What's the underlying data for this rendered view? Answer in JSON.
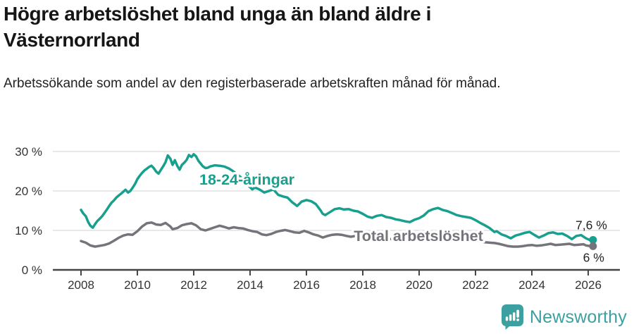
{
  "header": {
    "title": "Högre arbetslöshet bland unga än bland äldre i Västernorrland",
    "subtitle": "Arbetssökande som andel av den registerbaserade arbetskraften månad för månad."
  },
  "chart_data": {
    "type": "line",
    "title": "Högre arbetslöshet bland unga än bland äldre i Västernorrland",
    "subtitle": "Arbetssökande som andel av den registerbaserade arbetskraften månad för månad.",
    "x_unit": "year (monthly data)",
    "y_unit": "percent",
    "xlim": [
      2007.0,
      2027.1
    ],
    "ylim": [
      0,
      32
    ],
    "grid": "horizontal",
    "legend_position": "inline-on-line",
    "yticks": [
      {
        "value": 0,
        "label": "0 %"
      },
      {
        "value": 10,
        "label": "10 %"
      },
      {
        "value": 20,
        "label": "20 %"
      },
      {
        "value": 30,
        "label": "30 %"
      }
    ],
    "xticks": [
      2008,
      2010,
      2012,
      2014,
      2016,
      2018,
      2020,
      2022,
      2024,
      2026
    ],
    "colors": {
      "grid": "#d9d9d9",
      "axis": "#454545",
      "tick_text": "#333333"
    },
    "series": [
      {
        "id": "youth",
        "label": "18-24-åringar",
        "color": "#17a08e",
        "end_label": "7,6 %",
        "end_value": 7.6,
        "label_pos": {
          "year": 2012.2,
          "value": 21.6
        },
        "end_label_offset": [
          20,
          -15
        ],
        "points": [
          [
            2008.0,
            15.2
          ],
          [
            2008.08,
            14.3
          ],
          [
            2008.17,
            13.6
          ],
          [
            2008.25,
            12.2
          ],
          [
            2008.33,
            11.2
          ],
          [
            2008.42,
            10.7
          ],
          [
            2008.5,
            11.6
          ],
          [
            2008.58,
            12.4
          ],
          [
            2008.67,
            13.0
          ],
          [
            2008.75,
            13.6
          ],
          [
            2008.83,
            14.4
          ],
          [
            2008.92,
            15.3
          ],
          [
            2009.0,
            16.2
          ],
          [
            2009.08,
            17.0
          ],
          [
            2009.17,
            17.6
          ],
          [
            2009.25,
            18.3
          ],
          [
            2009.33,
            18.8
          ],
          [
            2009.42,
            19.3
          ],
          [
            2009.5,
            19.8
          ],
          [
            2009.58,
            20.3
          ],
          [
            2009.67,
            19.6
          ],
          [
            2009.75,
            20.0
          ],
          [
            2009.83,
            20.8
          ],
          [
            2009.92,
            21.8
          ],
          [
            2010.0,
            23.0
          ],
          [
            2010.08,
            23.8
          ],
          [
            2010.17,
            24.6
          ],
          [
            2010.25,
            25.2
          ],
          [
            2010.33,
            25.6
          ],
          [
            2010.42,
            26.1
          ],
          [
            2010.5,
            26.4
          ],
          [
            2010.58,
            25.8
          ],
          [
            2010.67,
            24.9
          ],
          [
            2010.75,
            24.4
          ],
          [
            2010.83,
            25.3
          ],
          [
            2010.92,
            26.3
          ],
          [
            2011.0,
            27.3
          ],
          [
            2011.08,
            29.0
          ],
          [
            2011.17,
            28.2
          ],
          [
            2011.25,
            26.6
          ],
          [
            2011.33,
            27.8
          ],
          [
            2011.42,
            26.3
          ],
          [
            2011.5,
            25.4
          ],
          [
            2011.58,
            26.6
          ],
          [
            2011.67,
            27.2
          ],
          [
            2011.75,
            27.9
          ],
          [
            2011.83,
            29.1
          ],
          [
            2011.92,
            28.6
          ],
          [
            2012.0,
            29.3
          ],
          [
            2012.08,
            28.8
          ],
          [
            2012.17,
            27.6
          ],
          [
            2012.25,
            26.9
          ],
          [
            2012.33,
            26.2
          ],
          [
            2012.42,
            25.8
          ],
          [
            2012.5,
            25.9
          ],
          [
            2012.58,
            26.2
          ],
          [
            2012.75,
            26.5
          ],
          [
            2012.92,
            26.4
          ],
          [
            2013.08,
            26.2
          ],
          [
            2013.25,
            25.7
          ],
          [
            2013.42,
            24.9
          ],
          [
            2013.58,
            24.0
          ],
          [
            2013.75,
            23.0
          ],
          [
            2013.92,
            21.5
          ],
          [
            2014.08,
            20.4
          ],
          [
            2014.17,
            20.9
          ],
          [
            2014.33,
            20.4
          ],
          [
            2014.5,
            19.6
          ],
          [
            2014.67,
            20.0
          ],
          [
            2014.83,
            20.4
          ],
          [
            2015.0,
            19.0
          ],
          [
            2015.17,
            18.6
          ],
          [
            2015.33,
            18.3
          ],
          [
            2015.5,
            17.1
          ],
          [
            2015.67,
            16.2
          ],
          [
            2015.83,
            17.3
          ],
          [
            2016.0,
            17.7
          ],
          [
            2016.17,
            17.4
          ],
          [
            2016.33,
            16.7
          ],
          [
            2016.5,
            15.1
          ],
          [
            2016.58,
            14.2
          ],
          [
            2016.67,
            13.9
          ],
          [
            2016.83,
            14.6
          ],
          [
            2017.0,
            15.4
          ],
          [
            2017.17,
            15.6
          ],
          [
            2017.33,
            15.3
          ],
          [
            2017.5,
            15.4
          ],
          [
            2017.67,
            15.0
          ],
          [
            2017.83,
            14.8
          ],
          [
            2018.0,
            14.2
          ],
          [
            2018.17,
            13.5
          ],
          [
            2018.33,
            13.2
          ],
          [
            2018.5,
            13.7
          ],
          [
            2018.67,
            13.9
          ],
          [
            2018.83,
            13.4
          ],
          [
            2019.0,
            13.2
          ],
          [
            2019.17,
            12.8
          ],
          [
            2019.33,
            12.6
          ],
          [
            2019.5,
            12.3
          ],
          [
            2019.67,
            12.1
          ],
          [
            2019.83,
            12.7
          ],
          [
            2020.0,
            13.1
          ],
          [
            2020.17,
            13.8
          ],
          [
            2020.33,
            14.9
          ],
          [
            2020.5,
            15.4
          ],
          [
            2020.67,
            15.7
          ],
          [
            2020.83,
            15.2
          ],
          [
            2021.0,
            14.9
          ],
          [
            2021.17,
            14.4
          ],
          [
            2021.33,
            13.9
          ],
          [
            2021.5,
            13.6
          ],
          [
            2021.67,
            13.4
          ],
          [
            2021.83,
            13.2
          ],
          [
            2022.0,
            12.6
          ],
          [
            2022.17,
            11.9
          ],
          [
            2022.33,
            11.3
          ],
          [
            2022.5,
            10.6
          ],
          [
            2022.67,
            9.6
          ],
          [
            2022.75,
            9.8
          ],
          [
            2022.92,
            9.0
          ],
          [
            2023.08,
            8.6
          ],
          [
            2023.25,
            8.0
          ],
          [
            2023.42,
            8.7
          ],
          [
            2023.58,
            9.0
          ],
          [
            2023.75,
            9.4
          ],
          [
            2023.92,
            9.6
          ],
          [
            2024.08,
            8.9
          ],
          [
            2024.25,
            8.2
          ],
          [
            2024.42,
            8.7
          ],
          [
            2024.58,
            9.3
          ],
          [
            2024.75,
            9.5
          ],
          [
            2024.92,
            9.1
          ],
          [
            2025.08,
            9.2
          ],
          [
            2025.25,
            8.6
          ],
          [
            2025.42,
            7.8
          ],
          [
            2025.58,
            8.6
          ],
          [
            2025.75,
            8.8
          ],
          [
            2025.92,
            8.0
          ],
          [
            2026.08,
            7.5
          ],
          [
            2026.17,
            7.6
          ]
        ]
      },
      {
        "id": "total",
        "label": "Total arbetslöshet",
        "color": "#75747a",
        "end_label": "6 %",
        "end_value": 6.0,
        "label_pos": {
          "year": 2017.68,
          "value": 7.3
        },
        "end_label_offset": [
          16,
          22
        ],
        "points": [
          [
            2008.0,
            7.3
          ],
          [
            2008.17,
            6.9
          ],
          [
            2008.33,
            6.2
          ],
          [
            2008.5,
            5.9
          ],
          [
            2008.67,
            6.1
          ],
          [
            2008.83,
            6.3
          ],
          [
            2009.0,
            6.7
          ],
          [
            2009.17,
            7.4
          ],
          [
            2009.33,
            8.1
          ],
          [
            2009.5,
            8.7
          ],
          [
            2009.67,
            9.0
          ],
          [
            2009.83,
            8.9
          ],
          [
            2010.0,
            9.8
          ],
          [
            2010.17,
            11.0
          ],
          [
            2010.33,
            11.8
          ],
          [
            2010.5,
            12.0
          ],
          [
            2010.67,
            11.5
          ],
          [
            2010.83,
            11.4
          ],
          [
            2011.0,
            11.9
          ],
          [
            2011.17,
            11.0
          ],
          [
            2011.25,
            10.3
          ],
          [
            2011.42,
            10.6
          ],
          [
            2011.58,
            11.3
          ],
          [
            2011.75,
            11.6
          ],
          [
            2011.92,
            11.8
          ],
          [
            2012.08,
            11.3
          ],
          [
            2012.25,
            10.3
          ],
          [
            2012.42,
            10.0
          ],
          [
            2012.58,
            10.4
          ],
          [
            2012.75,
            10.8
          ],
          [
            2012.92,
            11.2
          ],
          [
            2013.08,
            10.9
          ],
          [
            2013.25,
            10.5
          ],
          [
            2013.42,
            10.8
          ],
          [
            2013.58,
            10.6
          ],
          [
            2013.75,
            10.5
          ],
          [
            2013.92,
            10.1
          ],
          [
            2014.08,
            9.8
          ],
          [
            2014.25,
            9.6
          ],
          [
            2014.42,
            9.0
          ],
          [
            2014.58,
            8.8
          ],
          [
            2014.75,
            9.1
          ],
          [
            2014.92,
            9.6
          ],
          [
            2015.08,
            9.9
          ],
          [
            2015.25,
            10.1
          ],
          [
            2015.42,
            9.8
          ],
          [
            2015.58,
            9.5
          ],
          [
            2015.75,
            9.4
          ],
          [
            2015.92,
            9.9
          ],
          [
            2016.08,
            9.5
          ],
          [
            2016.25,
            9.0
          ],
          [
            2016.42,
            8.7
          ],
          [
            2016.58,
            8.2
          ],
          [
            2016.75,
            8.6
          ],
          [
            2016.92,
            8.9
          ],
          [
            2017.08,
            9.0
          ],
          [
            2017.25,
            8.9
          ],
          [
            2017.42,
            8.6
          ],
          [
            2017.58,
            8.4
          ],
          [
            2017.75,
            8.6
          ],
          [
            2018.0,
            8.4
          ],
          [
            2018.25,
            8.2
          ],
          [
            2018.5,
            8.1
          ],
          [
            2018.75,
            7.9
          ],
          [
            2019.0,
            7.8
          ],
          [
            2019.25,
            7.7
          ],
          [
            2019.5,
            7.6
          ],
          [
            2019.75,
            7.8
          ],
          [
            2020.0,
            8.2
          ],
          [
            2020.25,
            8.8
          ],
          [
            2020.5,
            9.2
          ],
          [
            2020.75,
            9.0
          ],
          [
            2021.0,
            8.8
          ],
          [
            2021.25,
            8.4
          ],
          [
            2021.5,
            8.0
          ],
          [
            2021.75,
            7.7
          ],
          [
            2022.0,
            7.4
          ],
          [
            2022.17,
            7.2
          ],
          [
            2022.33,
            7.0
          ],
          [
            2022.5,
            6.9
          ],
          [
            2022.67,
            6.8
          ],
          [
            2022.83,
            6.6
          ],
          [
            2023.0,
            6.3
          ],
          [
            2023.17,
            6.0
          ],
          [
            2023.33,
            5.9
          ],
          [
            2023.5,
            5.9
          ],
          [
            2023.67,
            6.0
          ],
          [
            2023.83,
            6.2
          ],
          [
            2024.0,
            6.3
          ],
          [
            2024.17,
            6.1
          ],
          [
            2024.33,
            6.2
          ],
          [
            2024.5,
            6.4
          ],
          [
            2024.67,
            6.6
          ],
          [
            2024.83,
            6.3
          ],
          [
            2025.0,
            6.4
          ],
          [
            2025.17,
            6.5
          ],
          [
            2025.33,
            6.6
          ],
          [
            2025.5,
            6.3
          ],
          [
            2025.67,
            6.4
          ],
          [
            2025.83,
            6.5
          ],
          [
            2025.92,
            6.2
          ],
          [
            2026.08,
            6.0
          ],
          [
            2026.17,
            6.0
          ]
        ]
      }
    ]
  },
  "footer": {
    "brand": "Newsworthy",
    "brand_color": "#3da0a0",
    "logo_icon": "bar-chart-speech-bubble"
  }
}
